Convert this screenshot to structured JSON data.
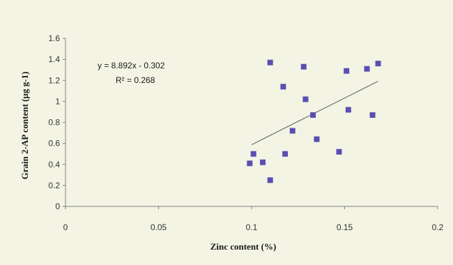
{
  "colors": {
    "background": "#f3f4e4",
    "marker": "#5a4fb1",
    "trendline": "#7a7a7a",
    "axis": "#7f7f7f"
  },
  "chart_data": {
    "type": "scatter",
    "title": "",
    "xlabel": "Zinc content (%)",
    "ylabel": "Grain 2-AP content (µg g-1)",
    "xlim": [
      0,
      0.2
    ],
    "ylim": [
      0,
      1.6
    ],
    "x_ticks": [
      "0",
      "0.05",
      "0.1",
      "0.15",
      "0.2"
    ],
    "y_ticks": [
      "0",
      "0.2",
      "0.4",
      "0.6",
      "0.8",
      "1",
      "1.2",
      "1.4",
      "1.6"
    ],
    "grid": false,
    "legend": "none",
    "points": [
      {
        "x": 0.099,
        "y": 0.41
      },
      {
        "x": 0.101,
        "y": 0.5
      },
      {
        "x": 0.106,
        "y": 0.42
      },
      {
        "x": 0.11,
        "y": 0.25
      },
      {
        "x": 0.11,
        "y": 1.37
      },
      {
        "x": 0.117,
        "y": 1.14
      },
      {
        "x": 0.118,
        "y": 0.5
      },
      {
        "x": 0.122,
        "y": 0.72
      },
      {
        "x": 0.128,
        "y": 1.33
      },
      {
        "x": 0.129,
        "y": 1.02
      },
      {
        "x": 0.133,
        "y": 0.87
      },
      {
        "x": 0.135,
        "y": 0.64
      },
      {
        "x": 0.147,
        "y": 0.52
      },
      {
        "x": 0.151,
        "y": 1.29
      },
      {
        "x": 0.152,
        "y": 0.92
      },
      {
        "x": 0.162,
        "y": 1.31
      },
      {
        "x": 0.165,
        "y": 0.87
      },
      {
        "x": 0.168,
        "y": 1.36
      }
    ],
    "trendline": {
      "slope": 8.892,
      "intercept": -0.302,
      "x_range": [
        0.1,
        0.168
      ],
      "equation": "y = 8.892x - 0.302",
      "r2": "R² = 0.268"
    }
  }
}
